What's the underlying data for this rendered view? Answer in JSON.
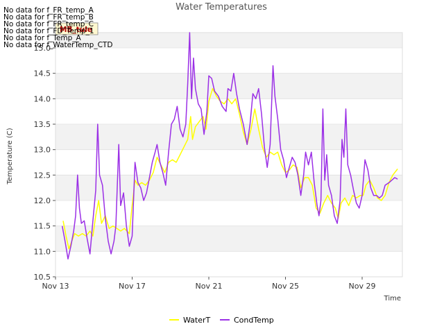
{
  "chart_data": {
    "type": "line",
    "title": "Water Temperatures",
    "xlabel": "Time",
    "ylabel": "Temperature (C)",
    "ylim": [
      10.5,
      15.3
    ],
    "yticks": [
      10.5,
      11.0,
      11.5,
      12.0,
      12.5,
      13.0,
      13.5,
      14.0,
      14.5,
      15.0
    ],
    "x_ticks": [
      {
        "day": 13,
        "label": "Nov 13"
      },
      {
        "day": 17,
        "label": "Nov 17"
      },
      {
        "day": 21,
        "label": "Nov 21"
      },
      {
        "day": 25,
        "label": "Nov 25"
      },
      {
        "day": 29,
        "label": "Nov 29"
      }
    ],
    "xlim_days": [
      13,
      31.1
    ],
    "grid": "horizontal bands",
    "legend_position": "bottom-center",
    "no_data_messages": [
      "No data for f_FR_temp_A",
      "No data for f_FR_temp_B",
      "No data for f_FR_temp_C",
      "No data for f_FD_Temp_1",
      "No data for f_Temp_A",
      "No data for f_WaterTemp_CTD"
    ],
    "badge_label": "MB_tule",
    "series": [
      {
        "name": "WaterT",
        "color": "#ffff00",
        "points": [
          [
            13.4,
            11.6
          ],
          [
            13.55,
            11.3
          ],
          [
            13.7,
            11.05
          ],
          [
            13.85,
            11.2
          ],
          [
            14.0,
            11.35
          ],
          [
            14.2,
            11.3
          ],
          [
            14.4,
            11.35
          ],
          [
            14.6,
            11.3
          ],
          [
            14.8,
            11.4
          ],
          [
            14.95,
            11.3
          ],
          [
            15.1,
            11.7
          ],
          [
            15.25,
            12.0
          ],
          [
            15.4,
            11.55
          ],
          [
            15.6,
            11.7
          ],
          [
            15.8,
            11.45
          ],
          [
            16.0,
            11.5
          ],
          [
            16.2,
            11.45
          ],
          [
            16.4,
            11.4
          ],
          [
            16.6,
            11.45
          ],
          [
            16.85,
            11.35
          ],
          [
            17.0,
            11.9
          ],
          [
            17.15,
            12.4
          ],
          [
            17.3,
            12.3
          ],
          [
            17.5,
            12.35
          ],
          [
            17.7,
            12.3
          ],
          [
            17.9,
            12.4
          ],
          [
            18.1,
            12.55
          ],
          [
            18.3,
            12.85
          ],
          [
            18.5,
            12.7
          ],
          [
            18.7,
            12.55
          ],
          [
            18.9,
            12.75
          ],
          [
            19.1,
            12.8
          ],
          [
            19.3,
            12.75
          ],
          [
            19.5,
            12.9
          ],
          [
            19.7,
            13.05
          ],
          [
            19.9,
            13.2
          ],
          [
            20.05,
            13.65
          ],
          [
            20.15,
            13.2
          ],
          [
            20.3,
            13.45
          ],
          [
            20.5,
            13.55
          ],
          [
            20.7,
            13.65
          ],
          [
            20.85,
            13.4
          ],
          [
            21.0,
            13.95
          ],
          [
            21.2,
            14.2
          ],
          [
            21.4,
            14.05
          ],
          [
            21.6,
            13.95
          ],
          [
            21.8,
            13.9
          ],
          [
            22.0,
            14.0
          ],
          [
            22.2,
            13.9
          ],
          [
            22.4,
            14.0
          ],
          [
            22.6,
            13.7
          ],
          [
            22.8,
            13.35
          ],
          [
            23.0,
            13.1
          ],
          [
            23.2,
            13.4
          ],
          [
            23.4,
            13.8
          ],
          [
            23.6,
            13.4
          ],
          [
            23.8,
            13.05
          ],
          [
            24.0,
            12.85
          ],
          [
            24.2,
            12.95
          ],
          [
            24.4,
            12.9
          ],
          [
            24.6,
            12.95
          ],
          [
            24.8,
            12.7
          ],
          [
            25.0,
            12.55
          ],
          [
            25.2,
            12.6
          ],
          [
            25.4,
            12.7
          ],
          [
            25.6,
            12.65
          ],
          [
            25.8,
            12.25
          ],
          [
            26.0,
            12.45
          ],
          [
            26.2,
            12.45
          ],
          [
            26.4,
            12.3
          ],
          [
            26.6,
            11.85
          ],
          [
            26.8,
            11.75
          ],
          [
            27.0,
            11.95
          ],
          [
            27.2,
            12.1
          ],
          [
            27.4,
            11.95
          ],
          [
            27.6,
            11.85
          ],
          [
            27.75,
            11.65
          ],
          [
            27.9,
            11.95
          ],
          [
            28.1,
            12.05
          ],
          [
            28.3,
            11.9
          ],
          [
            28.5,
            12.1
          ],
          [
            28.7,
            12.05
          ],
          [
            28.9,
            12.1
          ],
          [
            29.05,
            12.1
          ],
          [
            29.2,
            12.3
          ],
          [
            29.4,
            12.4
          ],
          [
            29.6,
            12.25
          ],
          [
            29.8,
            12.05
          ],
          [
            30.0,
            12.0
          ],
          [
            30.2,
            12.1
          ],
          [
            30.4,
            12.35
          ],
          [
            30.6,
            12.5
          ],
          [
            30.85,
            12.62
          ]
        ]
      },
      {
        "name": "CondTemp",
        "color": "#9b30e6",
        "points": [
          [
            13.35,
            11.5
          ],
          [
            13.5,
            11.2
          ],
          [
            13.65,
            10.85
          ],
          [
            13.8,
            11.1
          ],
          [
            13.95,
            11.4
          ],
          [
            14.05,
            11.7
          ],
          [
            14.15,
            12.5
          ],
          [
            14.25,
            11.85
          ],
          [
            14.35,
            11.55
          ],
          [
            14.5,
            11.6
          ],
          [
            14.65,
            11.25
          ],
          [
            14.8,
            10.95
          ],
          [
            14.95,
            11.6
          ],
          [
            15.1,
            12.2
          ],
          [
            15.2,
            13.5
          ],
          [
            15.3,
            12.5
          ],
          [
            15.45,
            12.3
          ],
          [
            15.6,
            11.65
          ],
          [
            15.75,
            11.2
          ],
          [
            15.9,
            10.95
          ],
          [
            16.05,
            11.2
          ],
          [
            16.15,
            11.5
          ],
          [
            16.3,
            13.1
          ],
          [
            16.4,
            11.9
          ],
          [
            16.55,
            12.15
          ],
          [
            16.7,
            11.5
          ],
          [
            16.85,
            11.1
          ],
          [
            17.0,
            11.3
          ],
          [
            17.15,
            12.75
          ],
          [
            17.3,
            12.35
          ],
          [
            17.45,
            12.25
          ],
          [
            17.6,
            12.0
          ],
          [
            17.75,
            12.15
          ],
          [
            17.9,
            12.45
          ],
          [
            18.05,
            12.75
          ],
          [
            18.2,
            12.95
          ],
          [
            18.3,
            13.1
          ],
          [
            18.45,
            12.75
          ],
          [
            18.6,
            12.55
          ],
          [
            18.75,
            12.3
          ],
          [
            18.9,
            12.95
          ],
          [
            19.05,
            13.5
          ],
          [
            19.2,
            13.6
          ],
          [
            19.35,
            13.85
          ],
          [
            19.5,
            13.4
          ],
          [
            19.65,
            13.25
          ],
          [
            19.8,
            13.5
          ],
          [
            19.9,
            14.3
          ],
          [
            20.0,
            15.3
          ],
          [
            20.1,
            14.0
          ],
          [
            20.2,
            14.8
          ],
          [
            20.3,
            14.2
          ],
          [
            20.45,
            13.9
          ],
          [
            20.6,
            13.8
          ],
          [
            20.75,
            13.3
          ],
          [
            20.9,
            13.75
          ],
          [
            21.0,
            14.45
          ],
          [
            21.15,
            14.4
          ],
          [
            21.3,
            14.15
          ],
          [
            21.5,
            14.05
          ],
          [
            21.7,
            13.85
          ],
          [
            21.9,
            13.75
          ],
          [
            22.0,
            14.2
          ],
          [
            22.15,
            14.15
          ],
          [
            22.3,
            14.5
          ],
          [
            22.45,
            14.1
          ],
          [
            22.6,
            13.8
          ],
          [
            22.8,
            13.5
          ],
          [
            23.0,
            13.1
          ],
          [
            23.15,
            13.5
          ],
          [
            23.3,
            14.1
          ],
          [
            23.45,
            14.0
          ],
          [
            23.6,
            14.2
          ],
          [
            23.75,
            13.7
          ],
          [
            23.9,
            13.05
          ],
          [
            24.05,
            12.65
          ],
          [
            24.2,
            13.1
          ],
          [
            24.35,
            14.65
          ],
          [
            24.45,
            14.05
          ],
          [
            24.6,
            13.6
          ],
          [
            24.75,
            13.0
          ],
          [
            24.9,
            12.8
          ],
          [
            25.05,
            12.45
          ],
          [
            25.2,
            12.65
          ],
          [
            25.35,
            12.85
          ],
          [
            25.5,
            12.75
          ],
          [
            25.65,
            12.5
          ],
          [
            25.8,
            12.1
          ],
          [
            25.95,
            12.5
          ],
          [
            26.05,
            12.95
          ],
          [
            26.2,
            12.7
          ],
          [
            26.35,
            12.95
          ],
          [
            26.5,
            12.35
          ],
          [
            26.65,
            11.9
          ],
          [
            26.75,
            11.7
          ],
          [
            26.85,
            12.0
          ],
          [
            26.95,
            13.8
          ],
          [
            27.05,
            12.4
          ],
          [
            27.15,
            12.9
          ],
          [
            27.25,
            12.3
          ],
          [
            27.4,
            12.1
          ],
          [
            27.55,
            11.7
          ],
          [
            27.7,
            11.55
          ],
          [
            27.85,
            12.0
          ],
          [
            27.95,
            13.2
          ],
          [
            28.05,
            12.85
          ],
          [
            28.15,
            13.8
          ],
          [
            28.25,
            12.7
          ],
          [
            28.4,
            12.5
          ],
          [
            28.55,
            12.2
          ],
          [
            28.7,
            11.95
          ],
          [
            28.85,
            11.85
          ],
          [
            29.0,
            12.1
          ],
          [
            29.15,
            12.8
          ],
          [
            29.3,
            12.6
          ],
          [
            29.45,
            12.25
          ],
          [
            29.6,
            12.1
          ],
          [
            29.75,
            12.1
          ],
          [
            29.9,
            12.05
          ],
          [
            30.05,
            12.1
          ],
          [
            30.2,
            12.3
          ],
          [
            30.4,
            12.35
          ],
          [
            30.55,
            12.4
          ],
          [
            30.7,
            12.45
          ],
          [
            30.85,
            12.42
          ]
        ]
      }
    ]
  }
}
